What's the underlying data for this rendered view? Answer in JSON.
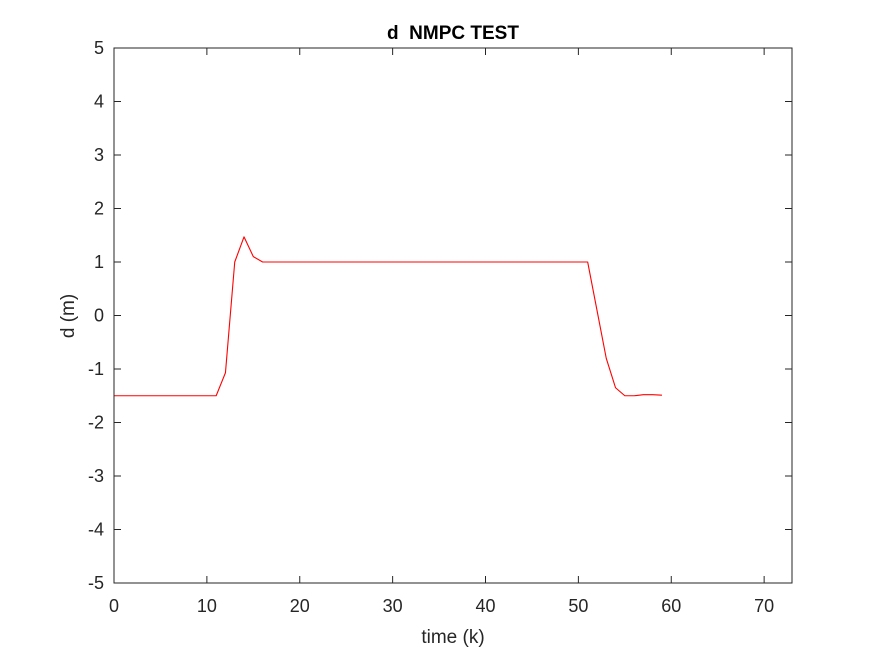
{
  "chart_data": {
    "type": "line",
    "title": "d  NMPC TEST",
    "xlabel": "time (k)",
    "ylabel": "d (m)",
    "xlim": [
      0,
      73
    ],
    "ylim": [
      -5,
      5
    ],
    "xticks": [
      0,
      10,
      20,
      30,
      40,
      50,
      60,
      70
    ],
    "yticks": [
      -5,
      -4,
      -3,
      -2,
      -1,
      0,
      1,
      2,
      3,
      4,
      5
    ],
    "grid": false,
    "legend": "none",
    "series": [
      {
        "color": "#ff0000",
        "x": [
          0,
          1,
          2,
          3,
          4,
          5,
          6,
          7,
          8,
          9,
          10,
          11,
          12,
          13,
          14,
          15,
          16,
          17,
          18,
          19,
          20,
          25,
          30,
          35,
          40,
          45,
          50,
          51,
          52,
          53,
          54,
          55,
          56,
          57,
          58,
          59
        ],
        "y": [
          -1.5,
          -1.5,
          -1.5,
          -1.5,
          -1.5,
          -1.5,
          -1.5,
          -1.5,
          -1.5,
          -1.5,
          -1.5,
          -1.5,
          -1.07,
          1.0,
          1.47,
          1.1,
          1.0,
          1.0,
          1.0,
          1.0,
          1.0,
          1.0,
          1.0,
          1.0,
          1.0,
          1.0,
          1.0,
          1.0,
          0.1,
          -0.8,
          -1.35,
          -1.5,
          -1.5,
          -1.48,
          -1.48,
          -1.49
        ]
      }
    ]
  }
}
